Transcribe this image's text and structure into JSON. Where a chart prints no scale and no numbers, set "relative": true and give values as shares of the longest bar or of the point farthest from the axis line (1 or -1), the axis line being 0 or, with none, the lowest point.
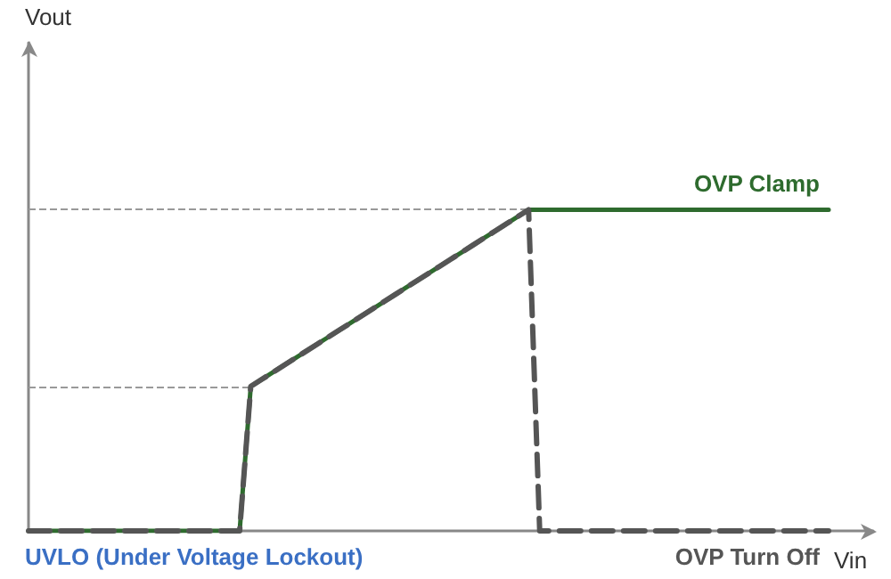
{
  "chart_data": {
    "type": "line",
    "relative": true,
    "xlabel": "Vin",
    "legend": false,
    "grid": false,
    "marker": "none",
    "categories": [
      null,
      null,
      null,
      null,
      null,
      null,
      null,
      null,
      null,
      null,
      null,
      null,
      null,
      null,
      null,
      null,
      null,
      null,
      null,
      null,
      null,
      null,
      null,
      null,
      null,
      null,
      null,
      null,
      null,
      null,
      null,
      null,
      null,
      null,
      null,
      null,
      null,
      null,
      null,
      null,
      null,
      null,
      null,
      null,
      null,
      null,
      null,
      null,
      null,
      null,
      null,
      null,
      null,
      null,
      null,
      null,
      null,
      null,
      null,
      null,
      null,
      null,
      null,
      null,
      null,
      null,
      null,
      null,
      null,
      null,
      null,
      null,
      null
    ],
    "series": [
      {
        "name": "OVP Clamp",
        "color": "#2e6b2e",
        "line_style": "solid",
        "values": [
          0,
          0,
          0,
          0,
          0,
          0,
          0,
          0,
          0,
          0,
          0,
          0,
          0,
          0,
          0,
          0,
          0,
          0,
          0,
          0,
          0.45,
          0.472,
          0.494,
          0.516,
          0.538,
          0.56,
          0.582,
          0.604,
          0.626,
          0.648,
          0.67,
          0.692,
          0.714,
          0.736,
          0.758,
          0.78,
          0.802,
          0.824,
          0.846,
          0.868,
          0.89,
          0.912,
          0.934,
          0.956,
          0.978,
          1,
          1,
          1,
          1,
          1,
          1,
          1,
          1,
          1,
          1,
          1,
          1,
          1,
          1,
          1,
          1,
          1,
          1,
          1,
          1,
          1,
          1,
          1,
          1,
          1,
          1,
          1,
          1
        ]
      },
      {
        "name": "OVP Turn Off",
        "color": "#555555",
        "line_style": "dashed",
        "values": [
          0,
          0,
          0,
          0,
          0,
          0,
          0,
          0,
          0,
          0,
          0,
          0,
          0,
          0,
          0,
          0,
          0,
          0,
          0,
          0,
          0.45,
          0.472,
          0.494,
          0.516,
          0.538,
          0.56,
          0.582,
          0.604,
          0.626,
          0.648,
          0.67,
          0.692,
          0.714,
          0.736,
          0.758,
          0.78,
          0.802,
          0.824,
          0.846,
          0.868,
          0.89,
          0.912,
          0.934,
          0.956,
          0.978,
          1,
          0,
          0,
          0,
          0,
          0,
          0,
          0,
          0,
          0,
          0,
          0,
          0,
          0,
          0,
          0,
          0,
          0,
          0,
          0,
          0,
          0,
          0,
          0,
          0,
          0,
          0,
          0
        ]
      }
    ],
    "ref_lines": [
      {
        "axis": "y",
        "value": 1,
        "color": "#999999",
        "line_style": "dashed"
      },
      {
        "axis": "y",
        "value": 0.45,
        "color": "#999999",
        "line_style": "dashed"
      }
    ],
    "annotations": [
      "Vout",
      "UVLO (Under Voltage Lockout)"
    ]
  }
}
